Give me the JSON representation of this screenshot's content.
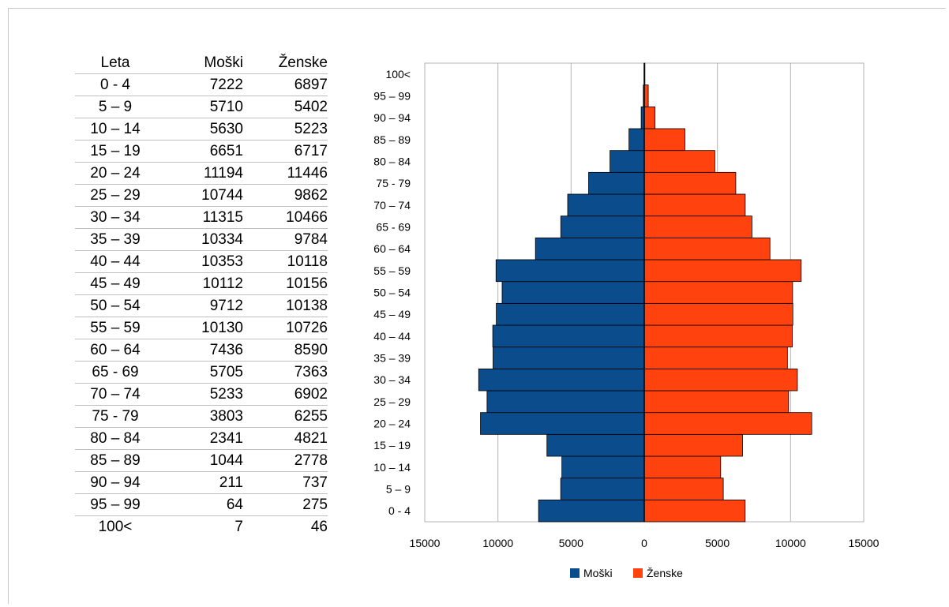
{
  "table": {
    "headers": [
      "Leta",
      "Moški",
      "Ženske"
    ],
    "rows": [
      [
        "0 - 4",
        "7222",
        "6897"
      ],
      [
        "5 – 9",
        "5710",
        "5402"
      ],
      [
        "10 – 14",
        "5630",
        "5223"
      ],
      [
        "15 – 19",
        "6651",
        "6717"
      ],
      [
        "20 – 24",
        "11194",
        "11446"
      ],
      [
        "25 – 29",
        "10744",
        "9862"
      ],
      [
        "30 – 34",
        "11315",
        "10466"
      ],
      [
        "35 – 39",
        "10334",
        "9784"
      ],
      [
        "40 – 44",
        "10353",
        "10118"
      ],
      [
        "45 – 49",
        "10112",
        "10156"
      ],
      [
        "50 – 54",
        "9712",
        "10138"
      ],
      [
        "55 – 59",
        "10130",
        "10726"
      ],
      [
        "60 – 64",
        "7436",
        "8590"
      ],
      [
        "65 - 69",
        "5705",
        "7363"
      ],
      [
        "70 – 74",
        "5233",
        "6902"
      ],
      [
        "75 - 79",
        "3803",
        "6255"
      ],
      [
        "80 – 84",
        "2341",
        "4821"
      ],
      [
        "85 – 89",
        "1044",
        "2778"
      ],
      [
        "90 – 94",
        "211",
        "737"
      ],
      [
        "95 – 99",
        "64",
        "275"
      ],
      [
        "100<",
        "7",
        "46"
      ]
    ]
  },
  "chart_data": {
    "type": "bar",
    "orientation": "horizontal",
    "categories": [
      "0 - 4",
      "5 – 9",
      "10 – 14",
      "15 – 19",
      "20 – 24",
      "25 – 29",
      "30 – 34",
      "35 – 39",
      "40 – 44",
      "45 – 49",
      "50 – 54",
      "55 – 59",
      "60 – 64",
      "65 - 69",
      "70 – 74",
      "75 - 79",
      "80 – 84",
      "85 – 89",
      "90 – 94",
      "95 – 99",
      "100<"
    ],
    "series": [
      {
        "name": "Moški",
        "color": "#0b4c8c",
        "values": [
          7222,
          5710,
          5630,
          6651,
          11194,
          10744,
          11315,
          10334,
          10353,
          10112,
          9712,
          10130,
          7436,
          5705,
          5233,
          3803,
          2341,
          1044,
          211,
          64,
          7
        ]
      },
      {
        "name": "Ženske",
        "color": "#ff420e",
        "values": [
          6897,
          5402,
          5223,
          6717,
          11446,
          9862,
          10466,
          9784,
          10118,
          10156,
          10138,
          10726,
          8590,
          7363,
          6902,
          6255,
          4821,
          2778,
          737,
          275,
          46
        ]
      }
    ],
    "xlim": [
      -15000,
      15000
    ],
    "x_ticks": [
      "15000",
      "10000",
      "5000",
      "0",
      "5000",
      "10000",
      "15000"
    ],
    "grid": true,
    "legend": "bottom"
  }
}
